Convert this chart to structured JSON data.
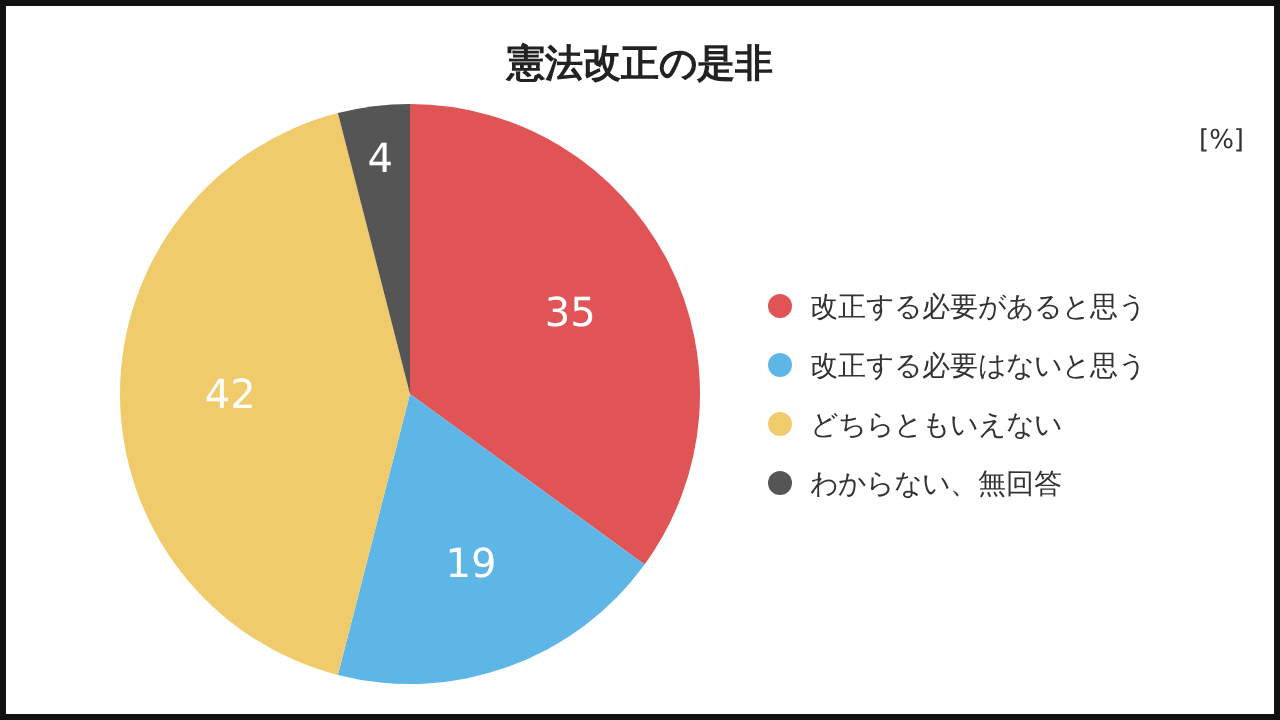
{
  "chart_data": {
    "type": "pie",
    "title": "憲法改正の是非",
    "categories": [
      "改正する必要があると思う",
      "改正する必要はないと思う",
      "どちらともいえない",
      "わからない、無回答"
    ],
    "values": [
      35,
      19,
      42,
      4
    ],
    "colors": [
      "#e05456",
      "#5eb6e6",
      "#f0cb6b",
      "#555555"
    ],
    "data_labels": true,
    "legend": "right",
    "annotations": [
      "[%]"
    ]
  }
}
